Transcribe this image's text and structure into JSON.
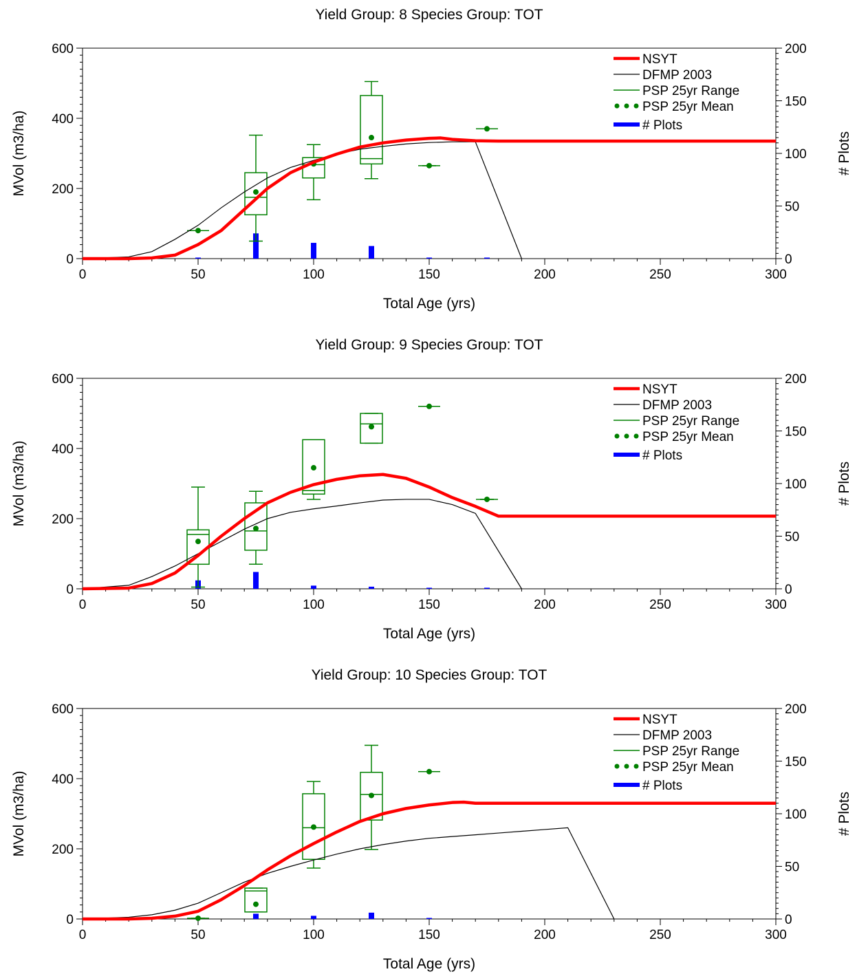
{
  "legend": {
    "nsyt": "NSYT",
    "dfmp": "DFMP 2003",
    "psp_range": "PSP 25yr Range",
    "psp_mean": "PSP 25yr Mean",
    "plots": "# Plots"
  },
  "colors": {
    "nsyt": "#ff0000",
    "dfmp": "#000000",
    "psp": "#008000",
    "plots": "#0000ff",
    "axis": "#000000"
  },
  "chart_data": [
    {
      "type": "line",
      "title": "Yield Group: 8  Species Group: TOT",
      "xlabel": "Total Age (yrs)",
      "ylabel": "MVol (m3/ha)",
      "y2label": "# Plots",
      "xlim": [
        0,
        300
      ],
      "ylim": [
        0,
        600
      ],
      "y2lim": [
        0,
        200
      ],
      "xticks": [
        0,
        50,
        100,
        150,
        200,
        250,
        300
      ],
      "yticks": [
        0,
        200,
        400,
        600
      ],
      "y2ticks": [
        0,
        50,
        100,
        150,
        200
      ],
      "legend_position": "top-right",
      "series": [
        {
          "name": "NSYT",
          "x": [
            0,
            20,
            30,
            40,
            50,
            60,
            70,
            80,
            90,
            100,
            110,
            120,
            130,
            140,
            150,
            155,
            160,
            170,
            180,
            190,
            200,
            250,
            300
          ],
          "y": [
            0,
            0,
            2,
            10,
            40,
            80,
            140,
            200,
            245,
            275,
            298,
            318,
            330,
            338,
            343,
            344,
            340,
            336,
            335,
            335,
            335,
            335,
            335
          ]
        },
        {
          "name": "DFMP 2003",
          "x": [
            0,
            20,
            30,
            40,
            50,
            60,
            70,
            80,
            90,
            100,
            110,
            120,
            130,
            140,
            150,
            160,
            170,
            190
          ],
          "y": [
            0,
            5,
            20,
            55,
            95,
            145,
            190,
            230,
            260,
            280,
            298,
            312,
            320,
            327,
            331,
            333,
            333,
            0
          ]
        }
      ],
      "psp_boxes": [
        {
          "age": 50,
          "min": 80,
          "q1": 80,
          "median": 80,
          "q3": 80,
          "max": 80,
          "mean": 80
        },
        {
          "age": 75,
          "min": 50,
          "q1": 125,
          "median": 175,
          "q3": 245,
          "max": 352,
          "mean": 190
        },
        {
          "age": 100,
          "min": 168,
          "q1": 230,
          "median": 268,
          "q3": 288,
          "max": 325,
          "mean": 270
        },
        {
          "age": 125,
          "min": 228,
          "q1": 270,
          "median": 285,
          "q3": 465,
          "max": 505,
          "mean": 345
        },
        {
          "age": 150,
          "min": 265,
          "q1": 265,
          "median": 265,
          "q3": 265,
          "max": 265,
          "mean": 265
        },
        {
          "age": 175,
          "min": 370,
          "q1": 370,
          "median": 370,
          "q3": 370,
          "max": 370,
          "mean": 370
        }
      ],
      "plot_counts": [
        {
          "age": 50,
          "count": 1
        },
        {
          "age": 75,
          "count": 24
        },
        {
          "age": 100,
          "count": 15
        },
        {
          "age": 125,
          "count": 12
        },
        {
          "age": 150,
          "count": 1
        },
        {
          "age": 175,
          "count": 1
        }
      ]
    },
    {
      "type": "line",
      "title": "Yield Group: 9  Species Group: TOT",
      "xlabel": "Total Age (yrs)",
      "ylabel": "MVol (m3/ha)",
      "y2label": "# Plots",
      "xlim": [
        0,
        300
      ],
      "ylim": [
        0,
        600
      ],
      "y2lim": [
        0,
        200
      ],
      "xticks": [
        0,
        50,
        100,
        150,
        200,
        250,
        300
      ],
      "yticks": [
        0,
        200,
        400,
        600
      ],
      "y2ticks": [
        0,
        50,
        100,
        150,
        200
      ],
      "legend_position": "top-right",
      "series": [
        {
          "name": "NSYT",
          "x": [
            0,
            20,
            30,
            40,
            50,
            60,
            70,
            80,
            90,
            100,
            110,
            120,
            130,
            140,
            150,
            160,
            170,
            180,
            200,
            250,
            300
          ],
          "y": [
            0,
            2,
            15,
            45,
            95,
            150,
            200,
            245,
            275,
            297,
            312,
            322,
            326,
            315,
            290,
            260,
            235,
            207,
            207,
            207,
            207
          ]
        },
        {
          "name": "DFMP 2003",
          "x": [
            0,
            20,
            30,
            40,
            50,
            60,
            70,
            80,
            90,
            100,
            110,
            120,
            130,
            140,
            150,
            160,
            170,
            190
          ],
          "y": [
            0,
            10,
            35,
            65,
            100,
            135,
            170,
            200,
            218,
            228,
            236,
            245,
            253,
            255,
            255,
            240,
            215,
            0
          ]
        }
      ],
      "psp_boxes": [
        {
          "age": 50,
          "min": 5,
          "q1": 70,
          "median": 155,
          "q3": 168,
          "max": 290,
          "mean": 135
        },
        {
          "age": 75,
          "min": 70,
          "q1": 110,
          "median": 165,
          "q3": 245,
          "max": 278,
          "mean": 172
        },
        {
          "age": 100,
          "min": 255,
          "q1": 270,
          "median": 280,
          "q3": 425,
          "max": 425,
          "mean": 345
        },
        {
          "age": 125,
          "min": 415,
          "q1": 415,
          "median": 470,
          "q3": 500,
          "max": 500,
          "mean": 462
        },
        {
          "age": 150,
          "min": 520,
          "q1": 520,
          "median": 520,
          "q3": 520,
          "max": 520,
          "mean": 520
        },
        {
          "age": 175,
          "min": 255,
          "q1": 255,
          "median": 255,
          "q3": 255,
          "max": 255,
          "mean": 255
        }
      ],
      "plot_counts": [
        {
          "age": 50,
          "count": 8
        },
        {
          "age": 75,
          "count": 16
        },
        {
          "age": 100,
          "count": 3
        },
        {
          "age": 125,
          "count": 2
        },
        {
          "age": 150,
          "count": 1
        },
        {
          "age": 175,
          "count": 1
        }
      ]
    },
    {
      "type": "line",
      "title": "Yield Group: 10  Species Group: TOT",
      "xlabel": "Total Age (yrs)",
      "ylabel": "MVol (m3/ha)",
      "y2label": "# Plots",
      "xlim": [
        0,
        300
      ],
      "ylim": [
        0,
        600
      ],
      "y2lim": [
        0,
        200
      ],
      "xticks": [
        0,
        50,
        100,
        150,
        200,
        250,
        300
      ],
      "yticks": [
        0,
        200,
        400,
        600
      ],
      "y2ticks": [
        0,
        50,
        100,
        150,
        200
      ],
      "legend_position": "top-right",
      "series": [
        {
          "name": "NSYT",
          "x": [
            0,
            20,
            30,
            40,
            50,
            60,
            70,
            80,
            90,
            100,
            110,
            120,
            130,
            140,
            150,
            160,
            165,
            170,
            180,
            200,
            250,
            300
          ],
          "y": [
            0,
            0,
            2,
            8,
            22,
            55,
            95,
            140,
            180,
            215,
            248,
            278,
            300,
            315,
            325,
            332,
            333,
            330,
            330,
            330,
            330,
            330
          ]
        },
        {
          "name": "DFMP 2003",
          "x": [
            0,
            20,
            30,
            40,
            50,
            60,
            70,
            80,
            90,
            100,
            110,
            120,
            130,
            140,
            150,
            160,
            170,
            180,
            190,
            200,
            210,
            230
          ],
          "y": [
            0,
            5,
            12,
            25,
            45,
            75,
            105,
            130,
            150,
            168,
            185,
            200,
            212,
            222,
            230,
            235,
            240,
            245,
            250,
            255,
            260,
            0
          ]
        }
      ],
      "psp_boxes": [
        {
          "age": 50,
          "min": 2,
          "q1": 2,
          "median": 2,
          "q3": 2,
          "max": 2,
          "mean": 2
        },
        {
          "age": 75,
          "min": 20,
          "q1": 20,
          "median": 80,
          "q3": 88,
          "max": 88,
          "mean": 42
        },
        {
          "age": 100,
          "min": 145,
          "q1": 170,
          "median": 260,
          "q3": 357,
          "max": 392,
          "mean": 262
        },
        {
          "age": 125,
          "min": 198,
          "q1": 282,
          "median": 355,
          "q3": 418,
          "max": 495,
          "mean": 352
        },
        {
          "age": 150,
          "min": 420,
          "q1": 420,
          "median": 420,
          "q3": 420,
          "max": 420,
          "mean": 420
        }
      ],
      "plot_counts": [
        {
          "age": 50,
          "count": 1
        },
        {
          "age": 75,
          "count": 5
        },
        {
          "age": 100,
          "count": 3
        },
        {
          "age": 125,
          "count": 6
        },
        {
          "age": 150,
          "count": 1
        }
      ]
    }
  ]
}
